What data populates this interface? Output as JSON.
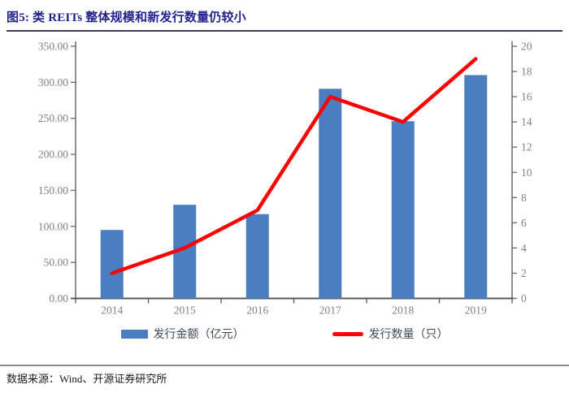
{
  "header": {
    "title": "图5:  类 REITs 整体规模和新发行数量仍较小"
  },
  "footer": {
    "source": "数据来源：Wind、开源证券研究所"
  },
  "colors": {
    "title": "#23238f",
    "bar": "#4a7ec0",
    "line": "#ff0000",
    "axis": "#6a6a6a",
    "x_axis": "#595959",
    "tick_label": "#828282"
  },
  "chart_data": {
    "type": "bar",
    "subtype": "combo bar+line, dual axis",
    "categories": [
      "2014",
      "2015",
      "2016",
      "2017",
      "2018",
      "2019"
    ],
    "series": [
      {
        "name": "发行金额（亿元）",
        "type": "bar",
        "axis": "left",
        "color": "#4a7ec0",
        "values": [
          95,
          130,
          117,
          291,
          246,
          310
        ]
      },
      {
        "name": "发行数量（只）",
        "type": "line",
        "axis": "right",
        "color": "#ff0000",
        "values": [
          2,
          4,
          7,
          16,
          14,
          19
        ]
      }
    ],
    "title": "类 REITs 整体规模和新发行数量仍较小",
    "xlabel": "",
    "ylabel_left": "发行金额（亿元）",
    "ylabel_right": "发行数量（只）",
    "left_axis": {
      "min": 0,
      "max": 350,
      "step": 50,
      "tick_labels": [
        "0.00",
        "50.00",
        "100.00",
        "150.00",
        "200.00",
        "250.00",
        "300.00",
        "350.00"
      ]
    },
    "right_axis": {
      "min": 0,
      "max": 20,
      "step": 2,
      "tick_labels": [
        "0",
        "2",
        "4",
        "6",
        "8",
        "10",
        "12",
        "14",
        "16",
        "18",
        "20"
      ]
    },
    "grid": false,
    "legend_position": "bottom"
  }
}
